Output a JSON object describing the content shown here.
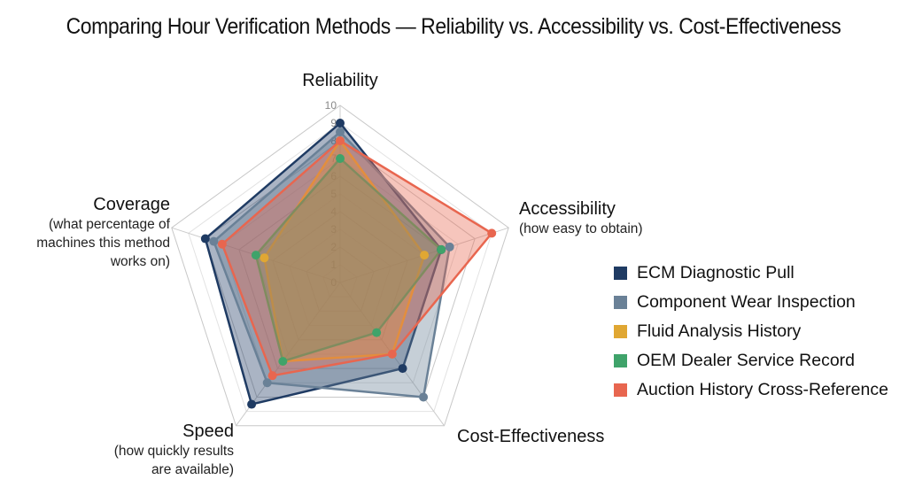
{
  "chart_data": {
    "type": "radar",
    "title": "Comparing Hour Verification Methods — Reliability vs. Accessibility vs. Cost-Effectiveness",
    "axes": [
      {
        "label": "Reliability",
        "sub": []
      },
      {
        "label": "Accessibility",
        "sub": [
          "(how easy to obtain)"
        ]
      },
      {
        "label": "Cost-Effectiveness",
        "sub": []
      },
      {
        "label": "Speed",
        "sub": [
          "(how quickly results",
          "are available)"
        ]
      },
      {
        "label": "Coverage",
        "sub": [
          "(what percentage of",
          "machines this method",
          "works on)"
        ]
      }
    ],
    "range": [
      0,
      10
    ],
    "ticks": [
      "0",
      "1",
      "2",
      "3",
      "4",
      "5",
      "6",
      "7",
      "8",
      "9",
      "10"
    ],
    "legend_position": "right",
    "series": [
      {
        "name": "ECM Diagnostic Pull",
        "color": "#1f3b63",
        "values": [
          9,
          6,
          6,
          8.5,
          8
        ]
      },
      {
        "name": "Component Wear Inspection",
        "color": "#6a8197",
        "values": [
          8.5,
          6.5,
          8,
          7,
          7.5
        ]
      },
      {
        "name": "Fluid Analysis History",
        "color": "#e0a733",
        "values": [
          8,
          5,
          5,
          5.5,
          4.5
        ]
      },
      {
        "name": "OEM Dealer Service Record",
        "color": "#3fa36a",
        "values": [
          7,
          6,
          3.5,
          5.5,
          5
        ]
      },
      {
        "name": "Auction History Cross-Reference",
        "color": "#e8664f",
        "values": [
          8,
          9,
          5,
          6.5,
          7
        ]
      }
    ]
  }
}
